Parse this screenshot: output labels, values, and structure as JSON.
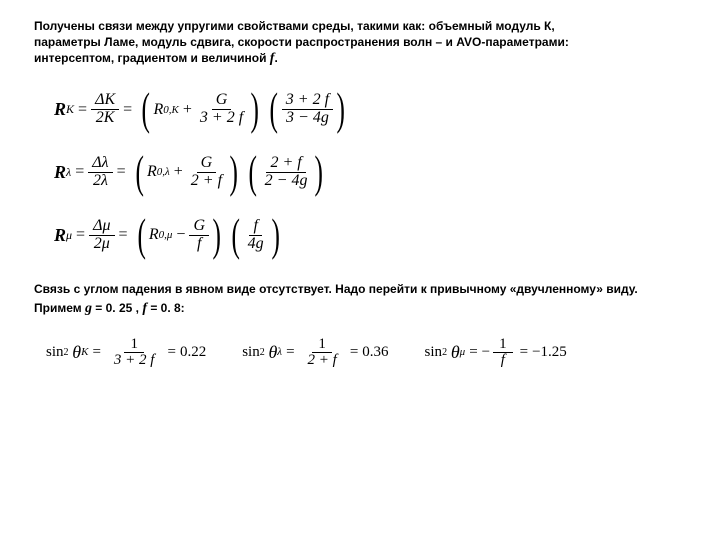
{
  "para1": {
    "line1": "Получены связи между упругими свойствами среды, такими как: объемный модуль К,",
    "line2": "параметры Ламе, модуль сдвига, скорости распространения волн – и AVO-параметрами:",
    "line3a": "интерсептом, градиентом и величиной ",
    "f_symbol": "f",
    "line3b": "."
  },
  "eq1": {
    "lhs_main": "R",
    "lhs_sub": "K",
    "lhs_frac_num": "ΔK",
    "lhs_frac_den": "2K",
    "p1_t1": "R",
    "p1_t1_sub": "0,K",
    "p1_op": "+",
    "p1_frac_num": "G",
    "p1_frac_den": "3 + 2 f",
    "p2_num": "3 + 2 f",
    "p2_den": "3 − 4g"
  },
  "eq2": {
    "lhs_main": "R",
    "lhs_sub": "λ",
    "lhs_frac_num": "Δλ",
    "lhs_frac_den": "2λ",
    "p1_t1": "R",
    "p1_t1_sub": "0,λ",
    "p1_op": "+",
    "p1_frac_num": "G",
    "p1_frac_den": "2 + f",
    "p2_num": "2 + f",
    "p2_den": "2 − 4g"
  },
  "eq3": {
    "lhs_main": "R",
    "lhs_sub": "μ",
    "lhs_frac_num": "Δμ",
    "lhs_frac_den": "2μ",
    "p1_t1": "R",
    "p1_t1_sub": "0,μ",
    "p1_op": "−",
    "p1_frac_num": "G",
    "p1_frac_den": "f",
    "p2_num": "f",
    "p2_den": "4g"
  },
  "para2": {
    "line1": "Связь с углом падения в явном виде отсутствует. Надо перейти к привычному «двучленному» виду.",
    "line2a": "Примем ",
    "g_sym": "g",
    "line2b": " = 0. 25 , ",
    "f_sym": "f",
    "line2c": " = 0. 8:"
  },
  "sinrow": {
    "label": "sin",
    "theta": "θ",
    "c1_sub": "K",
    "c1_den": "3 + 2 f",
    "c1_res": "0.22",
    "c2_sub": "λ",
    "c2_den": "2 + f",
    "c2_res": "0.36",
    "c3_sub": "μ",
    "c3_den": "f",
    "c3_res": "−1.25"
  }
}
